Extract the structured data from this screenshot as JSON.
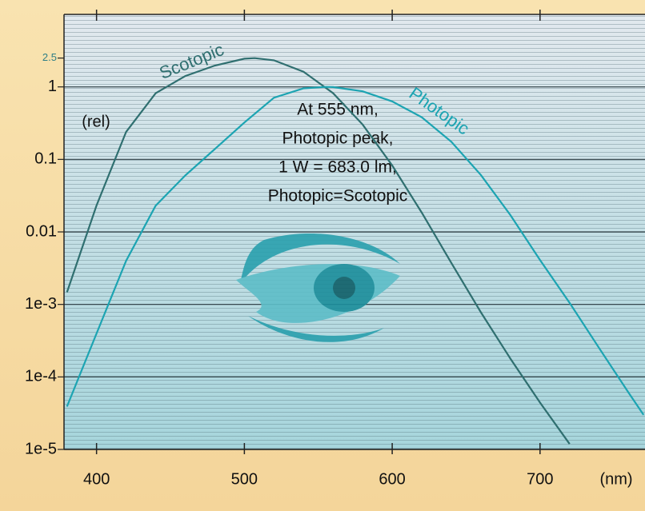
{
  "chart_data": {
    "type": "line",
    "x_label": "(nm)",
    "y_label": "(rel)",
    "xlim": [
      378,
      771
    ],
    "ylim": [
      1e-05,
      10
    ],
    "log_y": true,
    "xticks": [
      400,
      500,
      600,
      700
    ],
    "yticks": [
      {
        "value": 1e-05,
        "label": "1e-5"
      },
      {
        "value": 0.0001,
        "label": "1e-4"
      },
      {
        "value": 0.001,
        "label": "1e-3"
      },
      0.01,
      0.1,
      1,
      2.5
    ],
    "annotations": [
      "At 555 nm,",
      "Photopic peak,",
      "1 W = 683.0 lm,",
      "Photopic=Scotopic"
    ],
    "series": [
      {
        "name": "Scotopic",
        "color": "#2f6f70",
        "x": [
          380,
          400,
          420,
          440,
          460,
          480,
          500,
          507,
          520,
          540,
          560,
          580,
          600,
          620,
          640,
          660,
          680,
          700,
          720
        ],
        "values": [
          0.00147,
          0.0231,
          0.24,
          0.817,
          1.41,
          1.97,
          2.45,
          2.49,
          2.33,
          1.62,
          0.82,
          0.302,
          0.0825,
          0.0184,
          0.00373,
          0.00078,
          0.000178,
          4.43e-05,
          1.19e-05
        ]
      },
      {
        "name": "Photopic",
        "color": "#1ca4b2",
        "x": [
          380,
          400,
          420,
          440,
          460,
          480,
          500,
          520,
          540,
          555,
          560,
          580,
          600,
          620,
          640,
          660,
          680,
          700,
          720,
          740,
          760,
          770
        ],
        "values": [
          3.9e-05,
          0.000396,
          0.004,
          0.023,
          0.06,
          0.139,
          0.323,
          0.71,
          0.954,
          1.0,
          0.995,
          0.87,
          0.631,
          0.381,
          0.175,
          0.061,
          0.017,
          0.0041,
          0.00105,
          0.00025,
          6e-05,
          3e-05
        ]
      }
    ]
  }
}
